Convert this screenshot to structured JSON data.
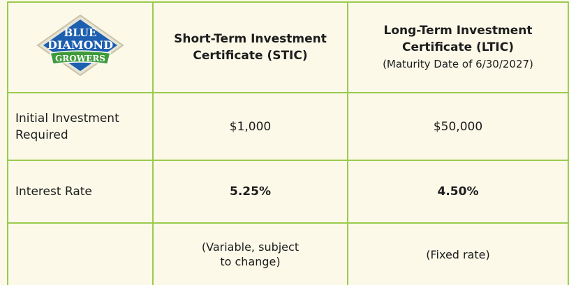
{
  "logo": {
    "line1": "BLUE",
    "line2": "DIAMOND",
    "line3": "GROWERS"
  },
  "header": {
    "columns": [
      {
        "title": "Short-Term Investment Certificate (STIC)"
      },
      {
        "title": "Long-Term Investment Certificate (LTIC)",
        "subtitle": "(Maturity Date of 6/30/2027)"
      }
    ]
  },
  "table": {
    "rows": [
      {
        "label": "Initial Investment Required",
        "cells": [
          "$1,000",
          "$50,000"
        ]
      },
      {
        "label": "Interest Rate",
        "cells": [
          "5.25%",
          "4.50%"
        ],
        "bold": true
      },
      {
        "cells": [
          "(Variable, subject to change)",
          "(Fixed rate)"
        ]
      }
    ]
  }
}
